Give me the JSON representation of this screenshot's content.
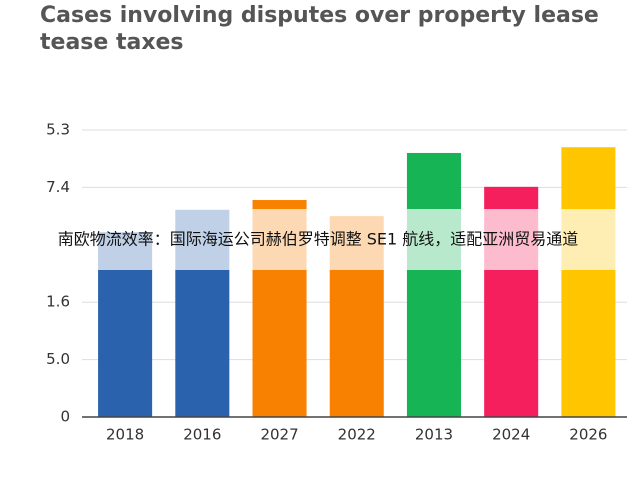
{
  "chart_data": {
    "type": "bar",
    "title": "Cases involving disputes over property lease tease taxes",
    "overlay_text": "南欧物流效率：国际海运公司赫伯罗特调整 SE1 航线，适配亚洲贸易通道",
    "categories": [
      "2018",
      "2016",
      "2027",
      "2022",
      "2013",
      "2024",
      "2026"
    ],
    "values": [
      3.22,
      3.61,
      3.78,
      3.5,
      4.6,
      4.01,
      4.7
    ],
    "colors": [
      "#2b62ad",
      "#2b62ad",
      "#f98102",
      "#f98102",
      "#17b455",
      "#f41f5c",
      "#ffc600"
    ],
    "ylim": [
      0,
      5
    ],
    "yticks": [
      0,
      {
        "value": 1,
        "label": "5.0"
      },
      {
        "value": 2,
        "label": "1.6"
      },
      {
        "value": 4,
        "label": "7.4"
      },
      {
        "value": 5,
        "label": "5.3"
      }
    ],
    "grid": true
  }
}
